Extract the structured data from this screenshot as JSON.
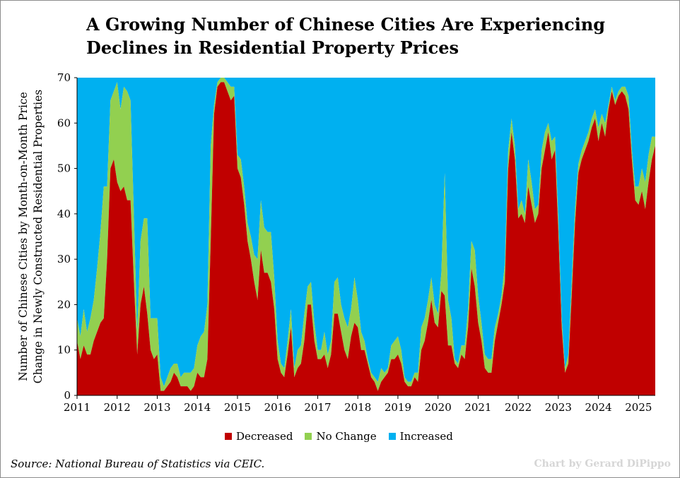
{
  "title_line1": "A Growing Number of Chinese Cities Are Experiencing",
  "title_line2": "Declines in Residential Property Prices",
  "chart_data": {
    "type": "area",
    "stacked": true,
    "ylabel_line1": "Number of Chinese Cities by Month-on-Month Price",
    "ylabel_line2": "Change in Newly Constructed Residential Properties",
    "ylim": [
      0,
      70
    ],
    "yticks": [
      "0",
      "10",
      "20",
      "30",
      "40",
      "50",
      "60",
      "70"
    ],
    "xticks": [
      "2011",
      "2012",
      "2013",
      "2014",
      "2015",
      "2016",
      "2017",
      "2018",
      "2019",
      "2020",
      "2021",
      "2022",
      "2023",
      "2024",
      "2025"
    ],
    "total_cities": 70,
    "start": "2011-01",
    "legend_position": "bottom",
    "series": [
      {
        "name": "Decreased",
        "color": "#c00000",
        "values": [
          12,
          8,
          11,
          9,
          9,
          12,
          14,
          16,
          17,
          30,
          50,
          52,
          47,
          45,
          46,
          43,
          43,
          25,
          9,
          20,
          24,
          18,
          10,
          8,
          9,
          1,
          1,
          2,
          3,
          5,
          4,
          2,
          2,
          2,
          1,
          2,
          5,
          4,
          4,
          8,
          34,
          62,
          68,
          69,
          69,
          67,
          65,
          66,
          50,
          48,
          42,
          34,
          30,
          25,
          21,
          32,
          27,
          27,
          25,
          19,
          8,
          5,
          4,
          9,
          15,
          4,
          6,
          7,
          12,
          20,
          20,
          12,
          8,
          8,
          9,
          6,
          9,
          18,
          18,
          14,
          10,
          8,
          13,
          16,
          15,
          10,
          10,
          7,
          4,
          3,
          1,
          3,
          4,
          5,
          8,
          8,
          9,
          7,
          3,
          2,
          2,
          4,
          3,
          10,
          12,
          16,
          21,
          16,
          15,
          23,
          22,
          11,
          11,
          7,
          6,
          9,
          8,
          15,
          28,
          24,
          16,
          12,
          6,
          5,
          5,
          12,
          16,
          20,
          25,
          50,
          58,
          52,
          39,
          40,
          38,
          46,
          42,
          38,
          40,
          50,
          54,
          58,
          52,
          54,
          36,
          15,
          5,
          7,
          22,
          38,
          49,
          52,
          54,
          56,
          59,
          61,
          56,
          60,
          57,
          63,
          67,
          64,
          66,
          67,
          66,
          63,
          52,
          43,
          42,
          45,
          41,
          47,
          52,
          55
        ],
        "formula": ""
      },
      {
        "name": "No Change",
        "color": "#92d050",
        "values": [
          5,
          5,
          8,
          5,
          8,
          9,
          14,
          20,
          29,
          16,
          15,
          15,
          22,
          18,
          22,
          24,
          22,
          15,
          5,
          14,
          15,
          21,
          7,
          9,
          8,
          3,
          1,
          2,
          3,
          2,
          3,
          2,
          3,
          3,
          4,
          4,
          6,
          9,
          10,
          12,
          21,
          2,
          1,
          1,
          1,
          2,
          3,
          2,
          3,
          4,
          4,
          4,
          5,
          6,
          9,
          11,
          10,
          9,
          11,
          7,
          4,
          2,
          2,
          3,
          4,
          2,
          4,
          4,
          6,
          4,
          5,
          4,
          2,
          2,
          5,
          3,
          3,
          7,
          8,
          6,
          7,
          7,
          6,
          10,
          6,
          4,
          2,
          1,
          1,
          1,
          2,
          3,
          1,
          1,
          3,
          4,
          4,
          3,
          1,
          1,
          1,
          1,
          2,
          5,
          5,
          5,
          5,
          4,
          3,
          4,
          27,
          10,
          6,
          1,
          1,
          2,
          3,
          4,
          6,
          8,
          6,
          4,
          3,
          3,
          3,
          3,
          2,
          2,
          4,
          4,
          3,
          3,
          2,
          3,
          2,
          6,
          5,
          3,
          2,
          4,
          4,
          2,
          4,
          3,
          3,
          2,
          1,
          2,
          3,
          3,
          2,
          2,
          2,
          2,
          2,
          2,
          3,
          2,
          3,
          1,
          1,
          1,
          1,
          1,
          2,
          3,
          2,
          3,
          4,
          5,
          6,
          6,
          5,
          2
        ],
        "formula": ""
      },
      {
        "name": "Increased",
        "color": "#00b0f0",
        "formula": ""
      }
    ]
  },
  "source": "Source: National Bureau of Statistics via CEIC.",
  "credit": "Chart by Gerard DiPippo"
}
